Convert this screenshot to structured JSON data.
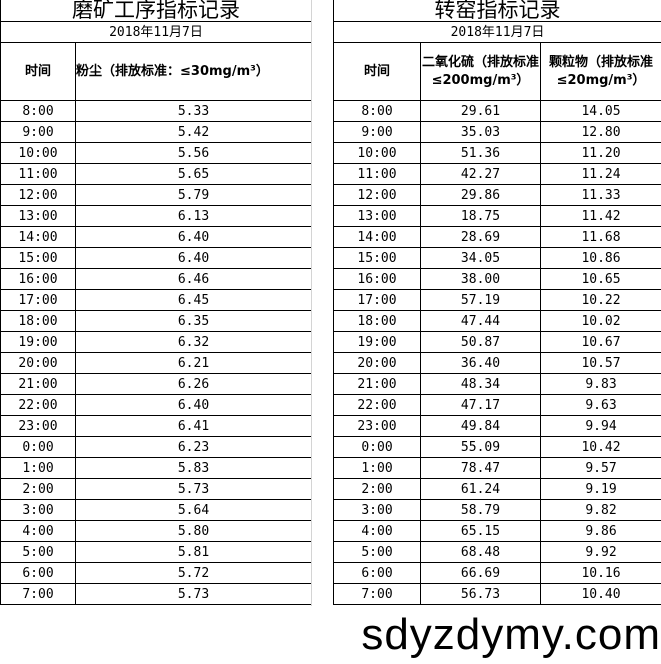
{
  "left": {
    "title": "磨矿工序指标记录",
    "date": "2018年11月7日",
    "headers": [
      "时间",
      "粉尘（排放标准：≤30mg/m³）"
    ]
  },
  "right": {
    "title": "转窑指标记录",
    "date": "2018年11月7日",
    "headers": [
      "时间",
      "二氧化硫（排放标准≤200mg/m³）",
      "颗粒物（排放标准≤20mg/m³）"
    ]
  },
  "times": [
    "8:00",
    "9:00",
    "10:00",
    "11:00",
    "12:00",
    "13:00",
    "14:00",
    "15:00",
    "16:00",
    "17:00",
    "18:00",
    "19:00",
    "20:00",
    "21:00",
    "22:00",
    "23:00",
    "0:00",
    "1:00",
    "2:00",
    "3:00",
    "4:00",
    "5:00",
    "6:00",
    "7:00"
  ],
  "dust": [
    "5.33",
    "5.42",
    "5.56",
    "5.65",
    "5.79",
    "6.13",
    "6.40",
    "6.40",
    "6.46",
    "6.45",
    "6.35",
    "6.32",
    "6.21",
    "6.26",
    "6.40",
    "6.41",
    "6.23",
    "5.83",
    "5.73",
    "5.64",
    "5.80",
    "5.81",
    "5.72",
    "5.73"
  ],
  "so2": [
    "29.61",
    "35.03",
    "51.36",
    "42.27",
    "29.86",
    "18.75",
    "28.69",
    "34.05",
    "38.00",
    "57.19",
    "47.44",
    "50.87",
    "36.40",
    "48.34",
    "47.17",
    "49.84",
    "55.09",
    "78.47",
    "61.24",
    "58.79",
    "65.15",
    "68.48",
    "66.69",
    "56.73"
  ],
  "particles": [
    "14.05",
    "12.80",
    "11.20",
    "11.24",
    "11.33",
    "11.42",
    "11.68",
    "10.86",
    "10.65",
    "10.22",
    "10.02",
    "10.67",
    "10.57",
    "9.83",
    "9.63",
    "9.94",
    "10.42",
    "9.57",
    "9.19",
    "9.82",
    "9.86",
    "9.92",
    "10.16",
    "10.40"
  ],
  "watermark": "sdyzdymy.com"
}
